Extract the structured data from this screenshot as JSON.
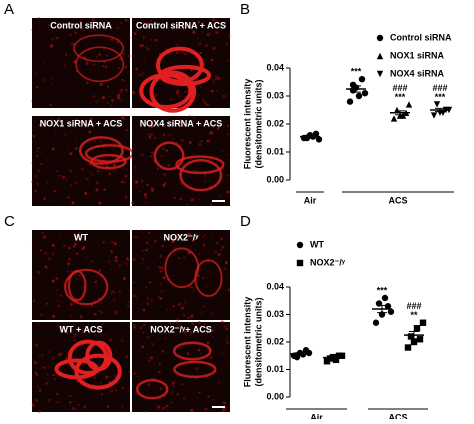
{
  "figure": {
    "panel_labels": [
      "A",
      "B",
      "C",
      "D"
    ],
    "images": [
      "Control siRNA",
      "Control siRNA + ACS",
      "NOX1 siRNA + ACS",
      "NOX4 siRNA + ACS",
      "WT",
      "NOX2⁻/ʸ",
      "WT + ACS",
      "NOX2⁻/ʸ+ ACS"
    ]
  },
  "chart_data": [
    {
      "type": "dot",
      "ylabel": [
        "Fluorescent intensity",
        "(densitometric units)"
      ],
      "categories": [
        null,
        null,
        null,
        null
      ],
      "groups": [
        {
          "label": "Air",
          "size": 1
        },
        {
          "label": "ACS",
          "size": 3
        }
      ],
      "ylim": [
        0,
        0.04
      ],
      "yticks": [
        {
          "value": 0,
          "label": "0.00"
        },
        0.01,
        0.02,
        0.03,
        0.04
      ],
      "legend": "upper-right",
      "series": [
        {
          "name": "Control siRNA",
          "marker": "circle",
          "color": "#000000",
          "points": [
            [
              0.015,
              0.016,
              0.0165,
              0.015,
              0.0155,
              0.0145
            ],
            [
              0.028,
              0.033,
              0.036,
              0.032,
              0.03,
              0.031,
              0.034
            ],
            null,
            null
          ],
          "means": [
            0.0155,
            0.0325,
            null,
            null
          ],
          "sems": [
            0.0005,
            0.0011,
            null,
            null
          ]
        },
        {
          "name": "NOX1 siRNA",
          "marker": "triangle",
          "color": "#000000",
          "points": [
            null,
            null,
            [
              0.022,
              0.023,
              0.024,
              0.025,
              0.023,
              0.027
            ],
            null
          ],
          "means": [
            null,
            null,
            0.024,
            null
          ],
          "sems": [
            null,
            null,
            0.0007,
            null
          ]
        },
        {
          "name": "NOX4 siRNA",
          "marker": "triangle-down",
          "color": "#000000",
          "points": [
            null,
            null,
            null,
            [
              0.023,
              0.024,
              0.025,
              0.027,
              0.024,
              0.025
            ]
          ],
          "means": [
            null,
            null,
            null,
            0.025
          ],
          "sems": [
            null,
            null,
            null,
            0.0006
          ]
        }
      ],
      "annotations": [
        [],
        [
          "***"
        ],
        [
          "***",
          "###"
        ],
        [
          "***",
          "###"
        ]
      ]
    },
    {
      "type": "dot",
      "ylabel": [
        "Fluorescent intensity",
        "(densitometric units)"
      ],
      "categories": [
        null,
        null,
        null,
        null
      ],
      "groups": [
        {
          "label": "Air",
          "size": 2
        },
        {
          "label": "ACS",
          "size": 2
        }
      ],
      "ylim": [
        0,
        0.04
      ],
      "yticks": [
        {
          "value": 0,
          "label": "0.00"
        },
        0.01,
        0.02,
        0.03,
        0.04
      ],
      "legend": "upper-left",
      "series": [
        {
          "name": "WT",
          "marker": "circle",
          "color": "#000000",
          "points": [
            [
              0.015,
              0.016,
              0.017,
              0.0145,
              0.0155,
              0.016
            ],
            null,
            [
              0.027,
              0.03,
              0.033,
              0.034,
              0.036,
              0.031
            ],
            null
          ],
          "means": [
            0.0157,
            null,
            0.032,
            null
          ],
          "sems": [
            0.0004,
            null,
            0.0013,
            null
          ]
        },
        {
          "name": "NOX2⁻/ʸ",
          "marker": "square",
          "color": "#000000",
          "points": [
            null,
            [
              0.013,
              0.0145,
              0.015,
              0.014,
              0.0135,
              0.015
            ],
            null,
            [
              0.018,
              0.02,
              0.021,
              0.022,
              0.025,
              0.027
            ]
          ],
          "means": [
            null,
            0.0143,
            null,
            0.0225
          ],
          "sems": [
            null,
            0.0003,
            null,
            0.0013
          ]
        }
      ],
      "annotations": [
        [],
        [],
        [
          "***"
        ],
        [
          "**",
          "###"
        ]
      ]
    }
  ]
}
